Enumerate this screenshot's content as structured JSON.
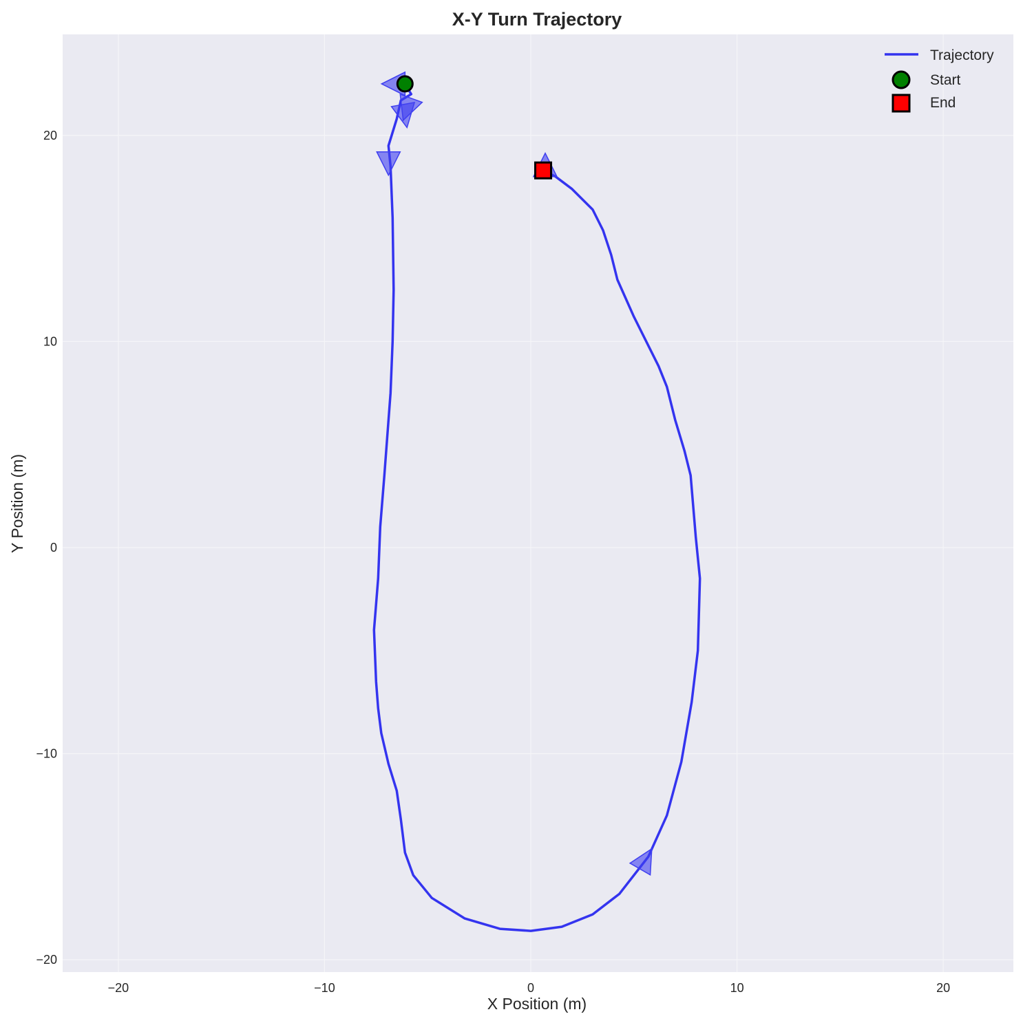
{
  "chart_data": {
    "type": "line",
    "title": "X-Y Turn Trajectory",
    "xlabel": "X Position (m)",
    "ylabel": "Y Position (m)",
    "xlim": [
      -22.7,
      23.4
    ],
    "ylim": [
      -20.6,
      24.9
    ],
    "xticks": [
      -20,
      -10,
      0,
      10,
      20
    ],
    "yticks": [
      -20,
      -10,
      0,
      10,
      20
    ],
    "xtick_labels": [
      "−20",
      "−10",
      "0",
      "10",
      "20"
    ],
    "ytick_labels": [
      "−20",
      "−10",
      "0",
      "10",
      "20"
    ],
    "grid": true,
    "legend_position": "top-right",
    "colors": {
      "background": "#eaeaf2",
      "grid": "#f5f5f8",
      "trajectory": "#1414ee",
      "start": "#008000",
      "end": "#ff0000",
      "arrow": "#3f3ff0"
    },
    "series": [
      {
        "name": "Trajectory",
        "points": [
          [
            -6.1,
            22.5
          ],
          [
            -5.8,
            22.0
          ],
          [
            -6.3,
            21.7
          ],
          [
            -6.5,
            20.8
          ],
          [
            -6.9,
            19.5
          ],
          [
            -6.8,
            18.5
          ],
          [
            -6.7,
            16.0
          ],
          [
            -6.65,
            12.5
          ],
          [
            -6.7,
            10.0
          ],
          [
            -6.8,
            7.5
          ],
          [
            -7.1,
            3.5
          ],
          [
            -7.3,
            1.0
          ],
          [
            -7.4,
            -1.5
          ],
          [
            -7.6,
            -4.0
          ],
          [
            -7.5,
            -6.5
          ],
          [
            -7.4,
            -7.8
          ],
          [
            -7.25,
            -9.0
          ],
          [
            -6.9,
            -10.5
          ],
          [
            -6.5,
            -11.8
          ],
          [
            -6.3,
            -13.2
          ],
          [
            -6.1,
            -14.8
          ],
          [
            -5.7,
            -15.9
          ],
          [
            -4.8,
            -17.0
          ],
          [
            -3.2,
            -18.0
          ],
          [
            -1.5,
            -18.5
          ],
          [
            0.0,
            -18.6
          ],
          [
            1.5,
            -18.4
          ],
          [
            3.0,
            -17.8
          ],
          [
            4.3,
            -16.8
          ],
          [
            5.7,
            -15.0
          ],
          [
            6.6,
            -13.0
          ],
          [
            7.3,
            -10.4
          ],
          [
            7.8,
            -7.5
          ],
          [
            8.1,
            -5.0
          ],
          [
            8.2,
            -1.5
          ],
          [
            8.0,
            0.5
          ],
          [
            7.75,
            3.5
          ],
          [
            7.45,
            4.7
          ],
          [
            7.0,
            6.2
          ],
          [
            6.6,
            7.8
          ],
          [
            6.2,
            8.8
          ],
          [
            5.0,
            11.2
          ],
          [
            4.2,
            13.0
          ],
          [
            3.9,
            14.2
          ],
          [
            3.5,
            15.4
          ],
          [
            3.0,
            16.4
          ],
          [
            2.0,
            17.4
          ],
          [
            1.2,
            18.0
          ],
          [
            0.6,
            18.3
          ]
        ]
      }
    ],
    "start": {
      "label": "Start",
      "x": -6.1,
      "y": 22.5
    },
    "end": {
      "label": "End",
      "x": 0.6,
      "y": 18.3
    },
    "direction_arrows": [
      {
        "x": -6.1,
        "y": 22.5,
        "angle_deg": 180
      },
      {
        "x": -5.8,
        "y": 21.8,
        "angle_deg": 250
      },
      {
        "x": -6.2,
        "y": 21.5,
        "angle_deg": 280
      },
      {
        "x": -6.9,
        "y": 19.2,
        "angle_deg": 270
      },
      {
        "x": 5.3,
        "y": -15.6,
        "angle_deg": 60
      },
      {
        "x": 0.7,
        "y": 18.0,
        "angle_deg": 90
      }
    ]
  }
}
